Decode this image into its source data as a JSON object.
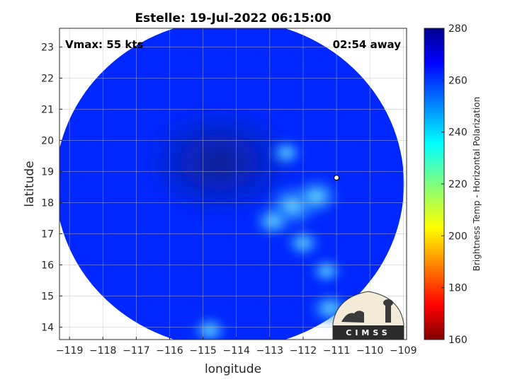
{
  "chart_data": {
    "type": "heatmap",
    "title": "Estelle: 19-Jul-2022 06:15:00",
    "xlabel": "longitude",
    "ylabel": "latitude",
    "xlim": [
      -119.3,
      -108.9
    ],
    "ylim": [
      13.6,
      23.6
    ],
    "xticks": [
      -119,
      -118,
      -117,
      -116,
      -115,
      -114,
      -113,
      -112,
      -111,
      -110,
      -109
    ],
    "yticks": [
      14,
      15,
      16,
      17,
      18,
      19,
      20,
      21,
      22,
      23
    ],
    "grid": true,
    "colorbar": {
      "label": "Brightness Temp - Horizontal Polarization",
      "range": [
        160,
        280
      ],
      "ticks": [
        160,
        180,
        200,
        220,
        240,
        260,
        280
      ],
      "colormap": "jet"
    },
    "annotations": {
      "vmax": "Vmax: 55 kts",
      "time_offset": "02:54 away"
    },
    "storm_center": {
      "lon": -111.0,
      "lat": 18.8
    },
    "field_features": {
      "background_temp": 262,
      "swath_center": {
        "lon": -114.2,
        "lat": 18.6
      },
      "cold_core": {
        "lon": -114.5,
        "lat": 19.3,
        "temp": 270
      },
      "warm_band": [
        {
          "lon": -112.3,
          "lat": 17.9,
          "temp": 235
        },
        {
          "lon": -111.6,
          "lat": 18.2,
          "temp": 240
        },
        {
          "lon": -112.9,
          "lat": 17.4,
          "temp": 245
        },
        {
          "lon": -112.0,
          "lat": 16.7,
          "temp": 248
        },
        {
          "lon": -111.3,
          "lat": 15.8,
          "temp": 250
        },
        {
          "lon": -111.2,
          "lat": 14.6,
          "temp": 245
        },
        {
          "lon": -112.5,
          "lat": 19.6,
          "temp": 250
        },
        {
          "lon": -114.8,
          "lat": 13.9,
          "temp": 248
        }
      ]
    }
  },
  "logo": {
    "text": "CIMSS"
  }
}
